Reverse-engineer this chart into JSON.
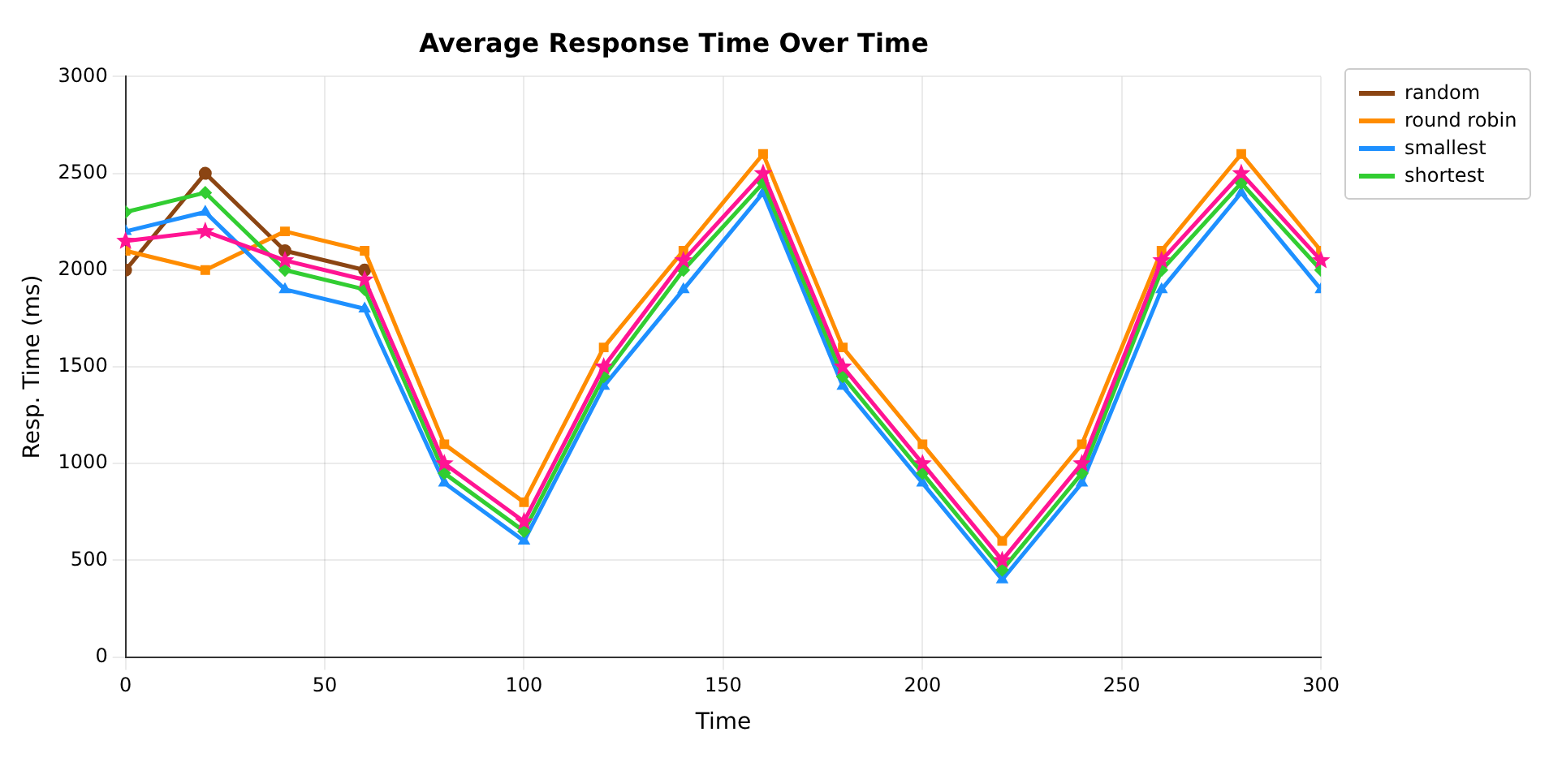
{
  "chart_data": {
    "type": "line",
    "title": "Average Response Time Over Time",
    "xlabel": "Time",
    "ylabel": "Resp. Time (ms)",
    "x": [
      0,
      20,
      40,
      60,
      80,
      100,
      120,
      140,
      160,
      180,
      200,
      220,
      240,
      260,
      280,
      300
    ],
    "xlim": [
      0,
      300
    ],
    "xticks": [
      0,
      50,
      100,
      150,
      200,
      250,
      300
    ],
    "ylim": [
      0,
      3000
    ],
    "yticks": [
      0,
      500,
      1000,
      1500,
      2000,
      2500,
      3000
    ],
    "grid": true,
    "legend": "top right",
    "line_style": "solid",
    "series": [
      {
        "name": "random",
        "color": "#8b4513",
        "marker": "circle",
        "values": [
          2000,
          2500,
          2100,
          2000,
          null,
          null,
          null,
          null,
          null,
          null,
          null,
          null,
          null,
          null,
          null,
          null
        ]
      },
      {
        "name": "round robin",
        "color": "#ff8c00",
        "marker": "square",
        "values": [
          2100,
          2000,
          2200,
          2100,
          1100,
          800,
          1600,
          2100,
          2600,
          1600,
          1100,
          600,
          1100,
          2100,
          2600,
          2100
        ]
      },
      {
        "name": "smallest",
        "color": "#1e90ff",
        "marker": "triangle",
        "values": [
          2200,
          2300,
          1900,
          1800,
          900,
          600,
          1400,
          1900,
          2400,
          1400,
          900,
          400,
          900,
          1900,
          2400,
          1900
        ]
      },
      {
        "name": "shortest",
        "color": "#32cd32",
        "marker": "diamond",
        "values": [
          2300,
          2400,
          2000,
          1900,
          950,
          650,
          1450,
          2000,
          2450,
          1450,
          950,
          450,
          950,
          2000,
          2450,
          2000
        ]
      },
      {
        "color": "#ff1493",
        "marker": "star",
        "values": [
          2150,
          2200,
          2050,
          1950,
          1000,
          700,
          1500,
          2050,
          2500,
          1500,
          1000,
          500,
          1000,
          2050,
          2500,
          2050
        ]
      }
    ]
  }
}
